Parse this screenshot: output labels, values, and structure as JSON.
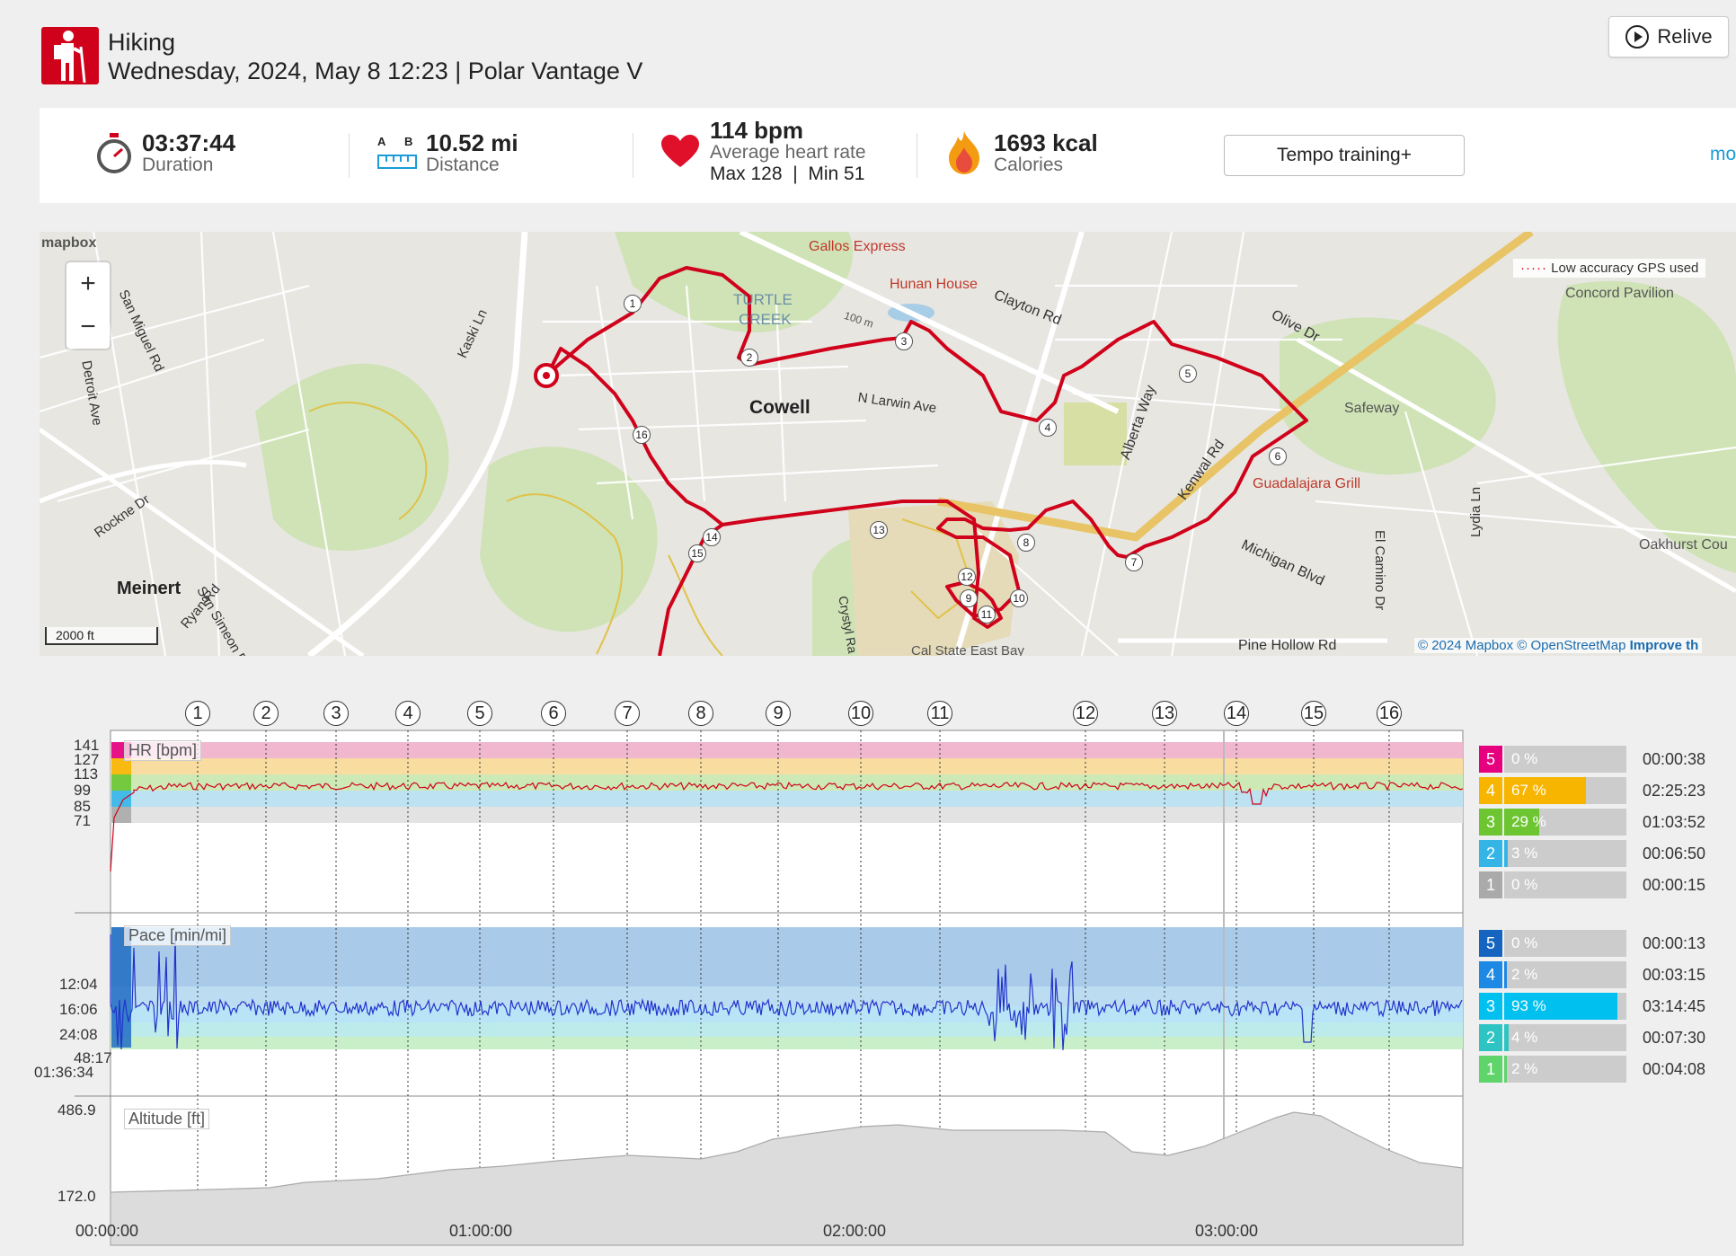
{
  "activity": {
    "sport": "Hiking",
    "subtitle": "Wednesday, 2024, May 8 12:23 | Polar Vantage V",
    "relive_label": "Relive"
  },
  "summary": {
    "duration": {
      "value": "03:37:44",
      "label": "Duration"
    },
    "distance": {
      "value": "10.52 mi",
      "label": "Distance",
      "a": "A",
      "b": "B"
    },
    "heart_rate": {
      "value": "114 bpm",
      "label": "Average heart rate",
      "max": "Max 128",
      "min": "Min 51",
      "sep": "|"
    },
    "calories": {
      "value": "1693 kcal",
      "label": "Calories"
    },
    "tempo_label": "Tempo training+",
    "more_label": "mo"
  },
  "map": {
    "logo": "mapbox",
    "zoom_in": "+",
    "zoom_out": "−",
    "gps_legend": "Low accuracy GPS used",
    "scale": "2000 ft",
    "attribution": {
      "copy": "© 2024 Mapbox",
      "osm": "© OpenStreetMap",
      "improve": "Improve th"
    },
    "labels": [
      {
        "text": "Gallos Express",
        "color": "#c0392b"
      },
      {
        "text": "Hunan House",
        "color": "#c0392b"
      },
      {
        "text": "Clayton Rd",
        "color": "#333"
      },
      {
        "text": "TURTLE",
        "color": "#6a8fa8"
      },
      {
        "text": "CREEK",
        "color": "#6a8fa8"
      },
      {
        "text": "Cowell",
        "color": "#222"
      },
      {
        "text": "N Larwin Ave",
        "color": "#333"
      },
      {
        "text": "Concord Pavilion",
        "color": "#555"
      },
      {
        "text": "Olive Dr",
        "color": "#333"
      },
      {
        "text": "Safeway",
        "color": "#555"
      },
      {
        "text": "Guadalajara Grill",
        "color": "#c0392b"
      },
      {
        "text": "Alberta Way",
        "color": "#333"
      },
      {
        "text": "Kenwal Rd",
        "color": "#333"
      },
      {
        "text": "Michigan Blvd",
        "color": "#333"
      },
      {
        "text": "El Camino Dr",
        "color": "#333"
      },
      {
        "text": "Lydia Ln",
        "color": "#333"
      },
      {
        "text": "Pine Hollow Rd",
        "color": "#333"
      },
      {
        "text": "Oakhurst Cou",
        "color": "#555"
      },
      {
        "text": "Meinert",
        "color": "#222"
      },
      {
        "text": "San Miguel Rd",
        "color": "#333"
      },
      {
        "text": "Detroit Ave",
        "color": "#333"
      },
      {
        "text": "Rockne Dr",
        "color": "#333"
      },
      {
        "text": "San Simeon Dr",
        "color": "#333"
      },
      {
        "text": "Ryan Rd",
        "color": "#333"
      },
      {
        "text": "Kaski Ln",
        "color": "#333"
      },
      {
        "text": "Crystyl Ra",
        "color": "#333"
      },
      {
        "text": "Cal State East Bay",
        "color": "#555"
      },
      {
        "text": "100 m",
        "color": "#555"
      }
    ],
    "route_laps": [
      "1",
      "2",
      "3",
      "4",
      "5",
      "6",
      "7",
      "8",
      "9",
      "10",
      "11",
      "12",
      "13",
      "14",
      "15",
      "16"
    ]
  },
  "charts": {
    "laps": [
      "1",
      "2",
      "3",
      "4",
      "5",
      "6",
      "7",
      "8",
      "9",
      "10",
      "11",
      "12",
      "13",
      "14",
      "15",
      "16"
    ],
    "hr": {
      "title": "HR [bpm]",
      "ticks": [
        "141",
        "127",
        "113",
        "99",
        "85",
        "71"
      ],
      "zones": [
        {
          "num": "5",
          "pct": "0 %",
          "fraction": 0.0,
          "time": "00:00:38",
          "color": "#e6007e"
        },
        {
          "num": "4",
          "pct": "67 %",
          "fraction": 0.67,
          "time": "02:25:23",
          "color": "#f7b500"
        },
        {
          "num": "3",
          "pct": "29 %",
          "fraction": 0.29,
          "time": "01:03:52",
          "color": "#6cc531"
        },
        {
          "num": "2",
          "pct": "3 %",
          "fraction": 0.03,
          "time": "00:06:50",
          "color": "#35b5e6"
        },
        {
          "num": "1",
          "pct": "0 %",
          "fraction": 0.0,
          "time": "00:00:15",
          "color": "#aaaaaa"
        }
      ]
    },
    "pace": {
      "title": "Pace [min/mi]",
      "ticks": [
        "12:04",
        "16:06",
        "24:08",
        "48:17",
        "01:36:34"
      ],
      "zones": [
        {
          "num": "5",
          "pct": "0 %",
          "fraction": 0.0,
          "time": "00:00:13",
          "color": "#1565c0"
        },
        {
          "num": "4",
          "pct": "2 %",
          "fraction": 0.02,
          "time": "00:03:15",
          "color": "#1e88e5"
        },
        {
          "num": "3",
          "pct": "93 %",
          "fraction": 0.93,
          "time": "03:14:45",
          "color": "#00c0f0"
        },
        {
          "num": "2",
          "pct": "4 %",
          "fraction": 0.04,
          "time": "00:07:30",
          "color": "#2ec4c4"
        },
        {
          "num": "1",
          "pct": "2 %",
          "fraction": 0.02,
          "time": "00:04:08",
          "color": "#5ed46a"
        }
      ]
    },
    "altitude": {
      "title": "Altitude [ft]",
      "ticks": [
        "486.9",
        "172.0"
      ]
    },
    "time_ticks": [
      "00:00:00",
      "01:00:00",
      "02:00:00",
      "03:00:00"
    ]
  }
}
